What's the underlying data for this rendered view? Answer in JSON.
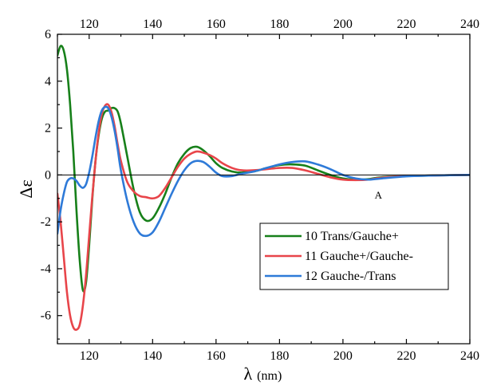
{
  "chart_data": {
    "type": "line",
    "title": "",
    "xlabel_symbol": "λ",
    "xlabel_unit": "(nm)",
    "ylabel": "Δε",
    "xlim": [
      110,
      240
    ],
    "ylim": [
      -7.2,
      6
    ],
    "x_ticks": [
      120,
      140,
      160,
      180,
      200,
      220,
      240
    ],
    "y_ticks": [
      -6,
      -4,
      -2,
      0,
      2,
      4,
      6
    ],
    "grid": false,
    "zero_line": true,
    "legend_position": "lower-right",
    "annotations": [
      {
        "text": "A",
        "x": 211,
        "y": -1.0
      }
    ],
    "series": [
      {
        "name": "10 Trans/Gauche+",
        "color": "#17801a",
        "points": [
          [
            110,
            5.1
          ],
          [
            111,
            5.5
          ],
          [
            112,
            5.3
          ],
          [
            113,
            4.5
          ],
          [
            114,
            3.0
          ],
          [
            115,
            1.0
          ],
          [
            116,
            -1.5
          ],
          [
            117,
            -3.6
          ],
          [
            118,
            -4.9
          ],
          [
            119,
            -4.6
          ],
          [
            120,
            -3.0
          ],
          [
            121,
            -1.0
          ],
          [
            122,
            0.6
          ],
          [
            123,
            1.7
          ],
          [
            124,
            2.4
          ],
          [
            125,
            2.7
          ],
          [
            126,
            2.75
          ],
          [
            127,
            2.85
          ],
          [
            128,
            2.85
          ],
          [
            129,
            2.7
          ],
          [
            130,
            2.2
          ],
          [
            132,
            0.8
          ],
          [
            134,
            -0.6
          ],
          [
            136,
            -1.6
          ],
          [
            138,
            -1.95
          ],
          [
            140,
            -1.85
          ],
          [
            142,
            -1.4
          ],
          [
            144,
            -0.8
          ],
          [
            146,
            -0.1
          ],
          [
            148,
            0.5
          ],
          [
            150,
            0.9
          ],
          [
            152,
            1.15
          ],
          [
            154,
            1.2
          ],
          [
            156,
            1.05
          ],
          [
            158,
            0.8
          ],
          [
            160,
            0.5
          ],
          [
            162,
            0.3
          ],
          [
            165,
            0.15
          ],
          [
            168,
            0.1
          ],
          [
            172,
            0.15
          ],
          [
            176,
            0.3
          ],
          [
            180,
            0.42
          ],
          [
            184,
            0.45
          ],
          [
            188,
            0.4
          ],
          [
            192,
            0.2
          ],
          [
            196,
            0.0
          ],
          [
            200,
            -0.15
          ],
          [
            204,
            -0.2
          ],
          [
            208,
            -0.18
          ],
          [
            212,
            -0.1
          ],
          [
            220,
            -0.05
          ],
          [
            230,
            -0.02
          ],
          [
            240,
            0.0
          ]
        ]
      },
      {
        "name": "11 Gauche+/Gauche-",
        "color": "#e8454a",
        "points": [
          [
            110,
            -0.8
          ],
          [
            111,
            -2.0
          ],
          [
            112,
            -3.5
          ],
          [
            113,
            -5.0
          ],
          [
            114,
            -6.0
          ],
          [
            115,
            -6.5
          ],
          [
            116,
            -6.6
          ],
          [
            117,
            -6.4
          ],
          [
            118,
            -5.6
          ],
          [
            119,
            -4.3
          ],
          [
            120,
            -2.6
          ],
          [
            121,
            -0.9
          ],
          [
            122,
            0.6
          ],
          [
            123,
            1.8
          ],
          [
            124,
            2.6
          ],
          [
            125,
            2.95
          ],
          [
            126,
            3.0
          ],
          [
            127,
            2.7
          ],
          [
            128,
            2.1
          ],
          [
            129,
            1.3
          ],
          [
            130,
            0.6
          ],
          [
            132,
            -0.3
          ],
          [
            134,
            -0.7
          ],
          [
            136,
            -0.9
          ],
          [
            138,
            -0.95
          ],
          [
            140,
            -1.0
          ],
          [
            142,
            -0.9
          ],
          [
            144,
            -0.55
          ],
          [
            146,
            -0.1
          ],
          [
            148,
            0.35
          ],
          [
            150,
            0.7
          ],
          [
            152,
            0.9
          ],
          [
            154,
            1.0
          ],
          [
            156,
            0.95
          ],
          [
            158,
            0.85
          ],
          [
            160,
            0.7
          ],
          [
            162,
            0.5
          ],
          [
            165,
            0.3
          ],
          [
            168,
            0.2
          ],
          [
            172,
            0.2
          ],
          [
            176,
            0.25
          ],
          [
            180,
            0.3
          ],
          [
            184,
            0.3
          ],
          [
            188,
            0.2
          ],
          [
            192,
            0.05
          ],
          [
            196,
            -0.1
          ],
          [
            200,
            -0.2
          ],
          [
            204,
            -0.22
          ],
          [
            208,
            -0.2
          ],
          [
            212,
            -0.12
          ],
          [
            220,
            -0.05
          ],
          [
            230,
            -0.02
          ],
          [
            240,
            0.0
          ]
        ]
      },
      {
        "name": "12 Gauche-/Trans",
        "color": "#2e7ad8",
        "points": [
          [
            110,
            -2.5
          ],
          [
            111,
            -1.5
          ],
          [
            112,
            -0.8
          ],
          [
            113,
            -0.3
          ],
          [
            114,
            -0.15
          ],
          [
            115,
            -0.15
          ],
          [
            116,
            -0.25
          ],
          [
            117,
            -0.45
          ],
          [
            118,
            -0.55
          ],
          [
            119,
            -0.4
          ],
          [
            120,
            0.1
          ],
          [
            121,
            0.8
          ],
          [
            122,
            1.6
          ],
          [
            123,
            2.3
          ],
          [
            124,
            2.75
          ],
          [
            125,
            2.9
          ],
          [
            126,
            2.85
          ],
          [
            127,
            2.5
          ],
          [
            128,
            1.9
          ],
          [
            129,
            1.1
          ],
          [
            130,
            0.2
          ],
          [
            132,
            -1.1
          ],
          [
            134,
            -2.0
          ],
          [
            136,
            -2.5
          ],
          [
            138,
            -2.6
          ],
          [
            140,
            -2.45
          ],
          [
            142,
            -2.0
          ],
          [
            144,
            -1.4
          ],
          [
            146,
            -0.8
          ],
          [
            148,
            -0.25
          ],
          [
            150,
            0.2
          ],
          [
            152,
            0.5
          ],
          [
            154,
            0.6
          ],
          [
            156,
            0.55
          ],
          [
            158,
            0.35
          ],
          [
            160,
            0.1
          ],
          [
            162,
            -0.05
          ],
          [
            165,
            -0.05
          ],
          [
            168,
            0.05
          ],
          [
            172,
            0.15
          ],
          [
            176,
            0.3
          ],
          [
            180,
            0.45
          ],
          [
            184,
            0.55
          ],
          [
            188,
            0.58
          ],
          [
            192,
            0.45
          ],
          [
            196,
            0.25
          ],
          [
            200,
            0.0
          ],
          [
            204,
            -0.15
          ],
          [
            208,
            -0.2
          ],
          [
            212,
            -0.15
          ],
          [
            220,
            -0.06
          ],
          [
            230,
            -0.02
          ],
          [
            240,
            0.0
          ]
        ]
      }
    ]
  }
}
